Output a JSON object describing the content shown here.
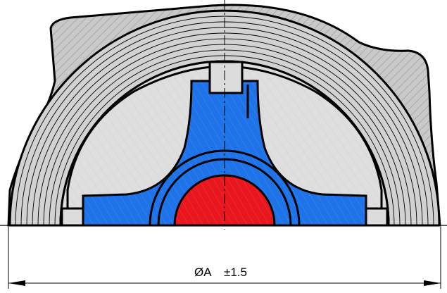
{
  "drawing": {
    "dimension_label": "ØA",
    "tolerance_label": "±1.5"
  },
  "colors": {
    "background": "#ffffff",
    "outline": "#000000",
    "housing_fill": "#c9c9c9",
    "housing_hatch": "#a9a9a9",
    "ring_fill": "#d2d2d2",
    "cavity_fill": "#dedede",
    "impeller_fill": "#1f73e8",
    "hub_fill": "#e8161d",
    "key_fill": "#dcdcdc"
  }
}
